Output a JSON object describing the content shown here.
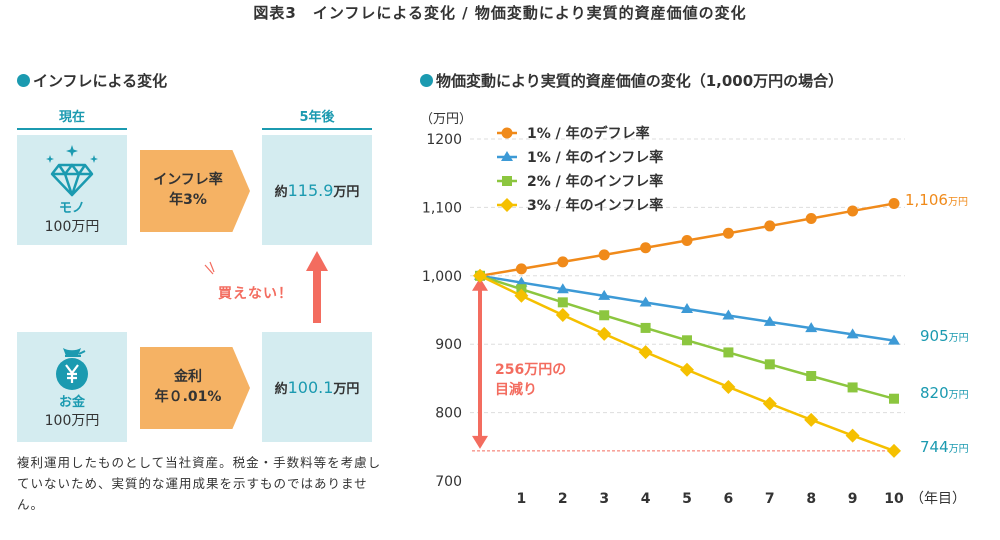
{
  "title": "図表3　インフレによる変化 / 物価変動により実質的資産価値の変化",
  "left": {
    "heading": "インフレによる変化",
    "col_now": "現在",
    "col_after": "5年後",
    "goods": {
      "label": "モノ",
      "amount": "100万円",
      "icon": "diamond-icon"
    },
    "inflation": {
      "line1": "インフレ率",
      "line2": "年3%"
    },
    "goods_result": {
      "prefix": "約",
      "value": "115.9",
      "unit": "万円"
    },
    "cash": {
      "label": "お金",
      "amount": "100万円",
      "icon": "yen-money-bag-icon"
    },
    "interest": {
      "line1": "金利",
      "line2": "年０.01%"
    },
    "cash_result": {
      "prefix": "約",
      "value": "100.1",
      "unit": "万円"
    },
    "cannot_buy": "買えない！",
    "note": "複利運用したものとして当社資産。税金・手数料等を考慮していないため、実質的な運用成果を示すものではありません。"
  },
  "colors": {
    "teal": "#1b9ab0",
    "box": "#d4ecf0",
    "chevron": "#f5b264",
    "red": "#f36c5f"
  },
  "chart_data": {
    "type": "line",
    "title": "物価変動により実質的資産価値の変化（1,000万円の場合）",
    "ylabel": "（万円）",
    "xlabel": "（年目）",
    "ylim": [
      700,
      1200
    ],
    "yticks": [
      "1200",
      "1,100",
      "1,000",
      "900",
      "800",
      "700"
    ],
    "x": [
      0,
      1,
      2,
      3,
      4,
      5,
      6,
      7,
      8,
      9,
      10
    ],
    "xticks": [
      "1",
      "2",
      "3",
      "4",
      "5",
      "6",
      "7",
      "8",
      "9",
      "10"
    ],
    "grid": true,
    "legend": "top-left",
    "series": [
      {
        "name": "1% / 年のデフレ率",
        "color": "#f08a1a",
        "marker": "circle",
        "values": [
          1000,
          1010.1,
          1020.3,
          1030.6,
          1041.0,
          1051.6,
          1062.2,
          1072.9,
          1083.8,
          1094.8,
          1105.7
        ],
        "end_label": "1,106",
        "end_unit": "万円"
      },
      {
        "name": "1% / 年のインフレ率",
        "color": "#3d9ad6",
        "marker": "triangle",
        "values": [
          1000,
          990.1,
          980.3,
          970.6,
          961.0,
          951.5,
          942.0,
          932.7,
          923.5,
          914.3,
          905.3
        ],
        "end_label": "905",
        "end_unit": "万円"
      },
      {
        "name": "2% / 年のインフレ率",
        "color": "#8cc63f",
        "marker": "square",
        "values": [
          1000,
          980.4,
          961.2,
          942.3,
          923.8,
          905.7,
          888.0,
          870.6,
          853.5,
          836.8,
          820.3
        ],
        "end_label": "820",
        "end_unit": "万円"
      },
      {
        "name": "3% / 年のインフレ率",
        "color": "#f5c000",
        "marker": "diamond",
        "values": [
          1000,
          970.9,
          942.6,
          915.1,
          888.5,
          862.6,
          837.5,
          813.1,
          789.4,
          766.4,
          744.1
        ],
        "end_label": "744",
        "end_unit": "万円"
      }
    ],
    "annotation": {
      "line1": "256万円の",
      "line2": "目減り",
      "from": 1000,
      "to": 744
    }
  }
}
